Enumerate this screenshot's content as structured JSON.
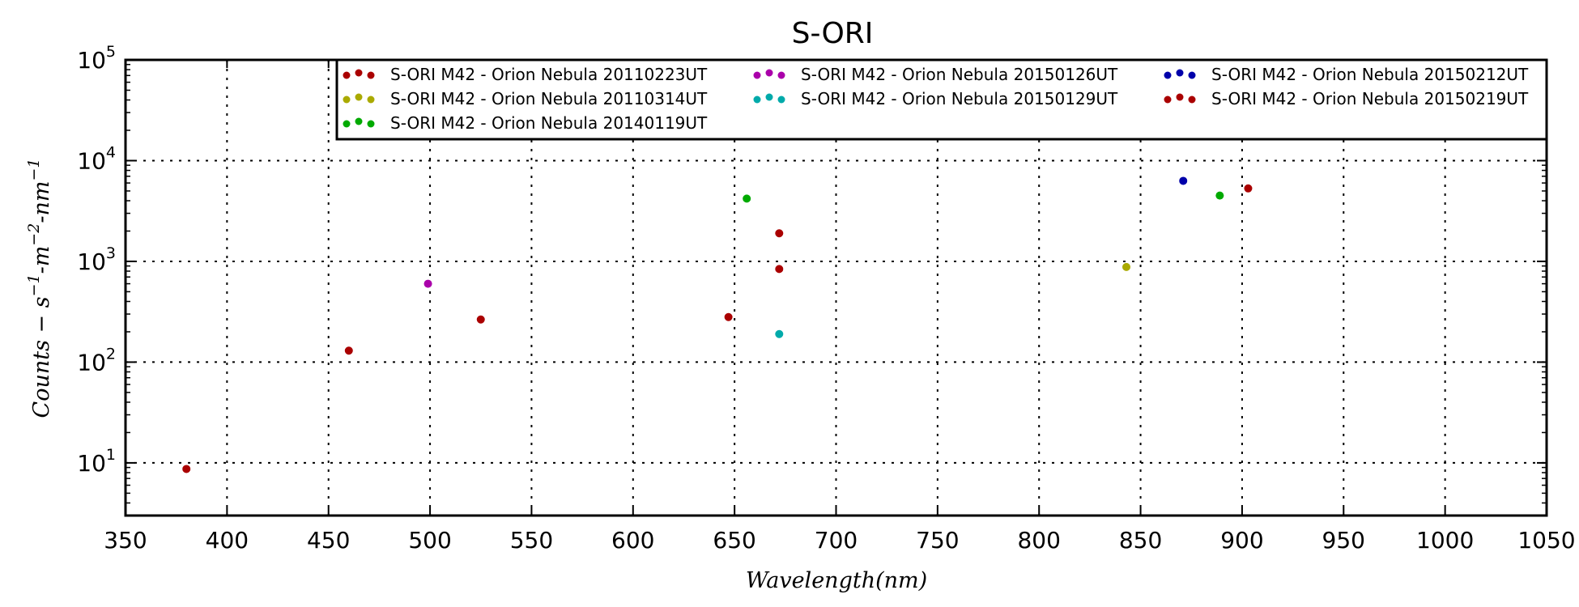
{
  "chart_data": {
    "type": "scatter",
    "title": "S-ORI",
    "xlabel": "Wavelength(nm)",
    "ylabel": "Counts - s-1-m-2-nm-1",
    "xlim": [
      350,
      1050
    ],
    "ylim": [
      3,
      100000
    ],
    "y_scale": "log",
    "grid": true,
    "legend_position": "top",
    "x_ticks": [
      "350",
      "400",
      "450",
      "500",
      "550",
      "600",
      "650",
      "700",
      "750",
      "800",
      "850",
      "900",
      "950",
      "1000",
      "1050"
    ],
    "y_ticks": [
      {
        "value": 10,
        "base": "10",
        "exp": "1"
      },
      {
        "value": 100,
        "base": "10",
        "exp": "2"
      },
      {
        "value": 1000,
        "base": "10",
        "exp": "3"
      },
      {
        "value": 10000,
        "base": "10",
        "exp": "4"
      },
      {
        "value": 100000,
        "base": "10",
        "exp": "5"
      }
    ],
    "series": [
      {
        "name": "S-ORI M42 - Orion Nebula 20110223UT",
        "color": "#aa0000",
        "points": [
          [
            380,
            8.7
          ],
          [
            460,
            130
          ],
          [
            525,
            265
          ],
          [
            647,
            280
          ],
          [
            672,
            840
          ],
          [
            672,
            1900
          ]
        ]
      },
      {
        "name": "S-ORI M42 - Orion Nebula 20110314UT",
        "color": "#aaaa00",
        "points": [
          [
            843,
            880
          ]
        ]
      },
      {
        "name": "S-ORI M42 - Orion Nebula 20140119UT",
        "color": "#00aa00",
        "points": [
          [
            656,
            4200
          ],
          [
            889,
            4500
          ]
        ]
      },
      {
        "name": "S-ORI M42 - Orion Nebula 20150126UT",
        "color": "#aa00aa",
        "points": [
          [
            499,
            600
          ]
        ]
      },
      {
        "name": "S-ORI M42 - Orion Nebula 20150129UT",
        "color": "#00aaaa",
        "points": [
          [
            672,
            190
          ]
        ]
      },
      {
        "name": "S-ORI M42 - Orion Nebula 20150212UT",
        "color": "#0000aa",
        "points": [
          [
            871,
            6300
          ]
        ]
      },
      {
        "name": "S-ORI M42 - Orion Nebula 20150219UT",
        "color": "#aa0000",
        "points": [
          [
            903,
            5300
          ]
        ]
      }
    ]
  }
}
